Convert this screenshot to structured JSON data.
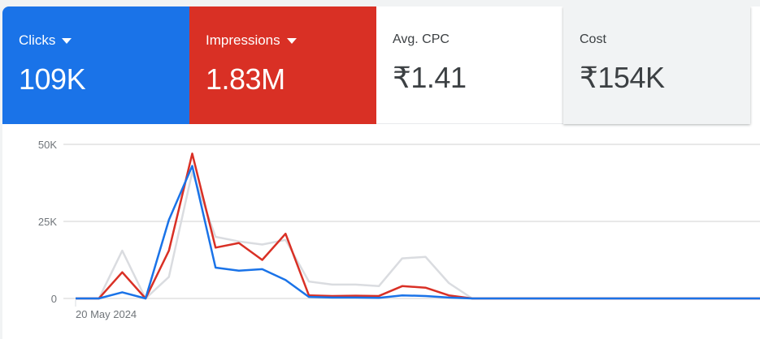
{
  "scorecards": [
    {
      "label": "Clicks",
      "value": "109K",
      "color": "#1a73e8",
      "dropdown": true
    },
    {
      "label": "Impressions",
      "value": "1.83M",
      "color": "#d93025",
      "dropdown": true
    },
    {
      "label": "Avg. CPC",
      "value": "₹1.41"
    },
    {
      "label": "Cost",
      "value": "₹154K"
    }
  ],
  "chart_data": {
    "type": "line",
    "yticks": [
      "0",
      "25K",
      "50K"
    ],
    "ylim": [
      0,
      50
    ],
    "x_start_label": "20 May 2024",
    "grid": true,
    "series": [
      {
        "color": "#dadce0",
        "values": [
          0,
          0,
          15.5,
          0,
          7,
          41,
          20,
          18.5,
          17.5,
          19,
          5.5,
          4.5,
          4.5,
          4,
          13,
          13.5,
          5,
          0,
          0,
          0,
          0,
          0,
          0,
          0,
          0,
          0,
          0,
          0,
          0,
          0,
          0
        ]
      },
      {
        "color": "#d93025",
        "values": [
          0,
          0,
          8.5,
          0,
          15.5,
          47,
          16.5,
          18,
          12.5,
          21,
          1,
          0.8,
          0.9,
          0.8,
          4,
          3.5,
          1,
          0,
          0,
          0,
          0,
          0,
          0,
          0,
          0,
          0,
          0,
          0,
          0,
          0,
          0
        ]
      },
      {
        "color": "#1a73e8",
        "values": [
          0,
          0,
          2,
          0,
          25.5,
          43,
          10,
          9,
          9.5,
          6,
          0.5,
          0.3,
          0.3,
          0.2,
          1,
          0.8,
          0.3,
          0,
          0,
          0,
          0,
          0,
          0,
          0,
          0,
          0,
          0,
          0,
          0,
          0,
          0
        ]
      }
    ]
  }
}
